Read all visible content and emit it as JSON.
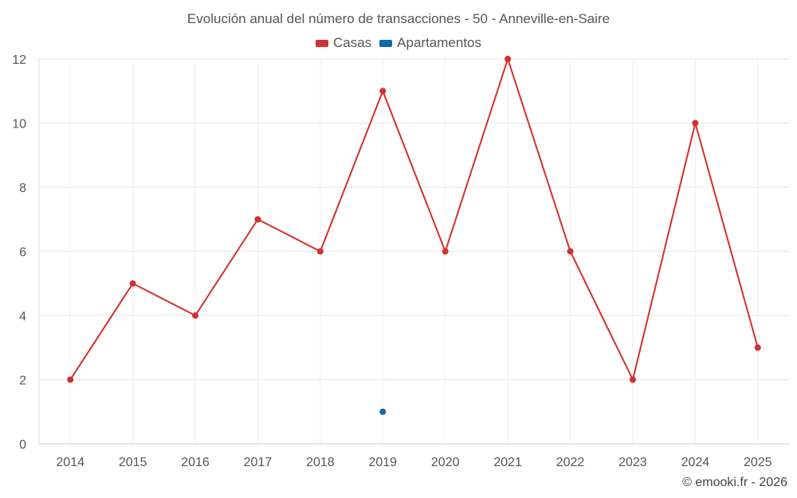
{
  "chart_data": {
    "type": "line",
    "title": "Evolución anual del número de transacciones - 50 - Anneville-en-Saire",
    "xlabel": "",
    "ylabel": "",
    "ylim": [
      0,
      12
    ],
    "yticks": [
      "0",
      "2",
      "4",
      "6",
      "8",
      "10",
      "12"
    ],
    "categories": [
      "2014",
      "2015",
      "2016",
      "2017",
      "2018",
      "2019",
      "2020",
      "2021",
      "2022",
      "2023",
      "2024",
      "2025"
    ],
    "grid": true,
    "legend_position": "top-center",
    "series": [
      {
        "name": "Casas",
        "color": "#d32f2f",
        "values": [
          2,
          5,
          4,
          7,
          6,
          11,
          6,
          12,
          6,
          2,
          10,
          3
        ]
      },
      {
        "name": "Apartamentos",
        "color": "#0f6aa6",
        "values": [
          null,
          null,
          null,
          null,
          null,
          1,
          null,
          null,
          null,
          null,
          null,
          null
        ]
      }
    ]
  },
  "legend": {
    "casas_label": "Casas",
    "apartamentos_label": "Apartamentos"
  },
  "footer": {
    "credit": "© emooki.fr - 2026"
  }
}
